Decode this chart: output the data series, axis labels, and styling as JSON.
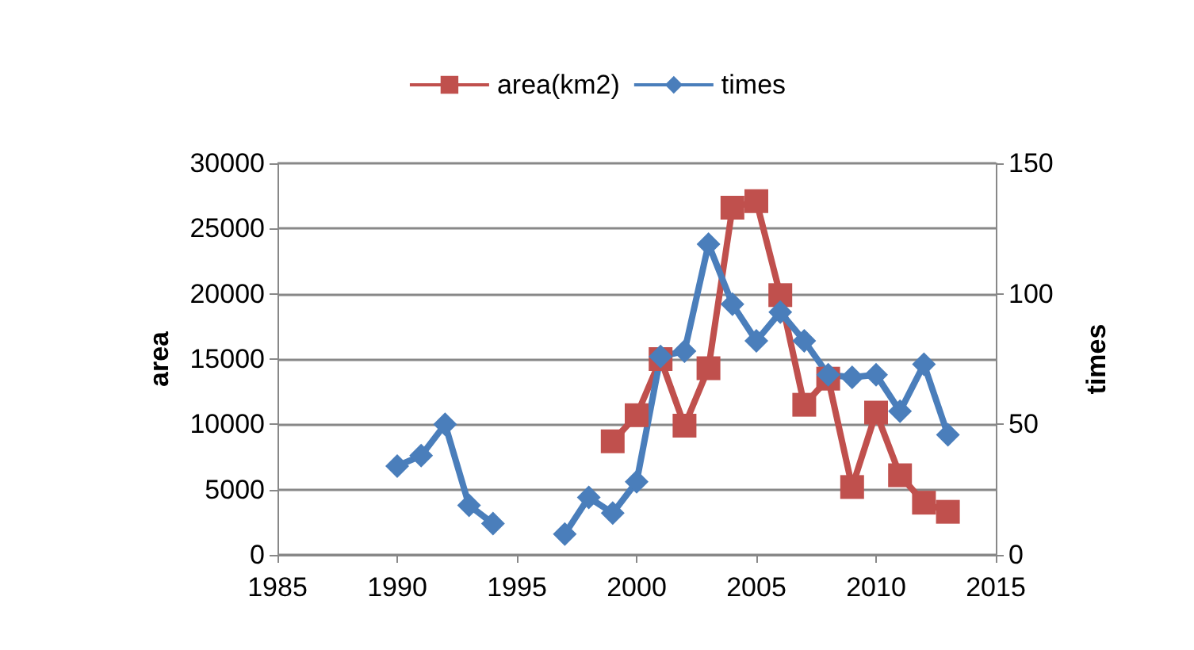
{
  "chart_data": {
    "type": "line",
    "ylabel": "area",
    "y2label": "times",
    "xlim": [
      1985,
      2015
    ],
    "xticks": [
      1985,
      1990,
      1995,
      2000,
      2005,
      2010,
      2015
    ],
    "ylim": [
      0,
      30000
    ],
    "yticks": [
      0,
      5000,
      10000,
      15000,
      20000,
      25000,
      30000
    ],
    "y2lim": [
      0,
      150
    ],
    "y2ticks": [
      0,
      50,
      100,
      150
    ],
    "grid": "y",
    "legend": "top",
    "series": [
      {
        "name": "area(km2)",
        "color": "#c0504d",
        "marker": "square",
        "x": [
          1999,
          2000,
          2001,
          2002,
          2003,
          2004,
          2005,
          2006,
          2007,
          2008,
          2009,
          2010,
          2011,
          2012,
          2013
        ],
        "values": [
          8700,
          10700,
          15000,
          9900,
          14300,
          26600,
          27100,
          19900,
          11500,
          13500,
          5200,
          10900,
          6100,
          4000,
          3300
        ]
      },
      {
        "name": "times",
        "color": "#4a7ebb",
        "marker": "diamond",
        "axis": "y2",
        "x": [
          1990,
          1991,
          1992,
          1993,
          1994,
          1995,
          1996,
          1997,
          1998,
          1999,
          2000,
          2001,
          2002,
          2003,
          2004,
          2005,
          2006,
          2007,
          2008,
          2009,
          2010,
          2011,
          2012,
          2013
        ],
        "values": [
          34,
          38,
          50,
          19,
          12,
          null,
          null,
          8,
          22,
          16,
          28,
          76,
          78,
          119,
          96,
          82,
          93,
          82,
          69,
          68,
          69,
          55,
          73,
          46
        ]
      }
    ]
  }
}
